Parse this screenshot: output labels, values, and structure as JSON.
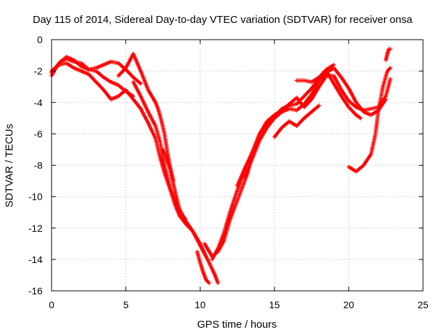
{
  "chart_data": {
    "type": "scatter",
    "title": "Day 115 of 2014, Sidereal Day-to-day VTEC variation (SDTVAR) for receiver onsa",
    "xlabel": "GPS time / hours",
    "ylabel": "SDTVAR / TECUs",
    "xlim": [
      0,
      25
    ],
    "ylim": [
      -16,
      0
    ],
    "xticks": [
      0,
      5,
      10,
      15,
      20,
      25
    ],
    "yticks": [
      0,
      -2,
      -4,
      -6,
      -8,
      -10,
      -12,
      -14,
      -16
    ],
    "grid": true,
    "marker": "+",
    "color": "#ff0000",
    "series": [
      {
        "x": [
          0.0,
          0.3,
          0.6,
          1.0,
          1.5,
          2.0,
          2.5,
          3.0,
          3.5,
          4.0,
          4.5,
          5.0,
          5.5
        ],
        "y": [
          -2.3,
          -1.8,
          -1.4,
          -1.2,
          -1.4,
          -1.5,
          -1.9,
          -2.0,
          -2.4,
          -2.7,
          -2.9,
          -3.3,
          -3.6
        ]
      },
      {
        "x": [
          0.0,
          0.5,
          1.0,
          1.5,
          2.0,
          2.5,
          3.0,
          3.5,
          4.0,
          4.5,
          5.0,
          5.5,
          6.0
        ],
        "y": [
          -2.0,
          -1.6,
          -1.5,
          -1.8,
          -2.0,
          -2.2,
          -2.7,
          -3.2,
          -3.8,
          -3.6,
          -3.2,
          -3.8,
          -4.4
        ]
      },
      {
        "x": [
          0.0,
          0.5,
          1.0,
          1.5,
          2.0,
          2.5,
          3.0,
          3.5,
          4.0,
          4.5,
          5.0,
          5.5,
          6.0
        ],
        "y": [
          -2.1,
          -1.5,
          -1.1,
          -1.3,
          -1.7,
          -1.9,
          -1.8,
          -1.6,
          -1.4,
          -1.5,
          -1.9,
          -2.4,
          -2.8
        ]
      },
      {
        "x": [
          4.5,
          5.0,
          5.5,
          6.0,
          6.5,
          7.0,
          7.2,
          7.4,
          7.6,
          7.8,
          8.0,
          8.2
        ],
        "y": [
          -2.3,
          -1.8,
          -0.9,
          -2.0,
          -3.2,
          -4.0,
          -4.5,
          -5.2,
          -6.0,
          -7.2,
          -8.2,
          -9.0
        ]
      },
      {
        "x": [
          5.5,
          6.0,
          6.5,
          7.0,
          7.3,
          7.6,
          8.0,
          8.3,
          8.6,
          9.0,
          9.5,
          10.0,
          10.3
        ],
        "y": [
          -2.7,
          -3.6,
          -4.6,
          -5.5,
          -6.5,
          -8.0,
          -9.5,
          -10.2,
          -10.8,
          -11.5,
          -12.2,
          -13.0,
          -13.6
        ]
      },
      {
        "x": [
          6.0,
          6.5,
          7.0,
          7.3,
          7.6,
          8.0,
          8.3,
          8.6,
          9.0,
          9.5,
          10.0,
          10.5,
          11.0,
          11.2
        ],
        "y": [
          -4.4,
          -5.3,
          -6.3,
          -7.5,
          -8.5,
          -9.6,
          -10.5,
          -11.2,
          -11.7,
          -12.2,
          -13.1,
          -14.0,
          -15.0,
          -15.5
        ]
      },
      {
        "x": [
          7.5,
          8.0,
          8.2,
          8.4,
          8.6,
          8.8,
          9.0
        ],
        "y": [
          -7.0,
          -8.3,
          -9.2,
          -10.0,
          -10.8,
          -11.2,
          -11.4
        ]
      },
      {
        "x": [
          9.8,
          10.0,
          10.2,
          10.4,
          10.6
        ],
        "y": [
          -13.5,
          -14.2,
          -14.8,
          -15.3,
          -15.5
        ]
      },
      {
        "x": [
          10.3,
          10.8,
          11.2,
          11.6,
          12.0,
          12.4,
          12.8,
          13.2,
          13.5
        ],
        "y": [
          -13.0,
          -13.8,
          -13.5,
          -12.8,
          -11.5,
          -10.5,
          -9.5,
          -8.5,
          -7.2
        ]
      },
      {
        "x": [
          10.8,
          11.2,
          11.6,
          12.0,
          12.5,
          13.0,
          13.5,
          14.0,
          14.5,
          15.0,
          15.5,
          16.0,
          16.5,
          17.0,
          17.5,
          18.0,
          18.5,
          19.0,
          19.5,
          20.0,
          20.5,
          21.0,
          21.5,
          22.0,
          22.5,
          22.8
        ],
        "y": [
          -14.0,
          -13.3,
          -12.3,
          -11.0,
          -9.6,
          -8.3,
          -7.2,
          -6.0,
          -5.2,
          -4.8,
          -4.5,
          -4.1,
          -3.7,
          -4.3,
          -3.8,
          -3.0,
          -2.3,
          -2.3,
          -3.2,
          -3.9,
          -4.3,
          -4.5,
          -4.4,
          -4.3,
          -3.6,
          -2.5
        ]
      },
      {
        "x": [
          12.5,
          13.0,
          13.5,
          14.0,
          14.5,
          15.0,
          15.5,
          16.0,
          16.5,
          17.0,
          17.5,
          18.0,
          18.5,
          19.0,
          19.5,
          20.0,
          20.5,
          20.8
        ],
        "y": [
          -9.3,
          -8.2,
          -7.2,
          -6.0,
          -5.3,
          -4.9,
          -4.4,
          -4.2,
          -4.1,
          -3.6,
          -3.1,
          -2.5,
          -2.0,
          -2.8,
          -3.6,
          -4.3,
          -4.8,
          -5.0
        ]
      },
      {
        "x": [
          13.0,
          13.5,
          14.0,
          14.5,
          15.0,
          15.5,
          16.0,
          16.5,
          17.0,
          17.5,
          18.0,
          18.5,
          19.0,
          19.5,
          20.0,
          20.5,
          21.0,
          21.5,
          22.0,
          22.5
        ],
        "y": [
          -8.8,
          -7.6,
          -6.4,
          -5.6,
          -5.0,
          -4.6,
          -4.4,
          -4.5,
          -4.1,
          -3.5,
          -2.6,
          -2.1,
          -1.8,
          -2.4,
          -3.1,
          -4.0,
          -4.6,
          -4.8,
          -4.5,
          -3.8
        ]
      },
      {
        "x": [
          15.0,
          15.5,
          16.0,
          16.5,
          17.0,
          17.5,
          18.0
        ],
        "y": [
          -6.2,
          -5.6,
          -5.2,
          -5.5,
          -5.0,
          -4.6,
          -4.2
        ]
      },
      {
        "x": [
          16.5,
          17.0,
          17.5,
          18.0,
          18.5,
          19.0
        ],
        "y": [
          -2.6,
          -2.6,
          -2.7,
          -2.4,
          -1.9,
          -1.6
        ]
      },
      {
        "x": [
          20.0,
          20.5,
          21.0,
          21.5,
          21.8,
          22.0,
          22.3,
          22.6,
          22.8
        ],
        "y": [
          -8.1,
          -8.4,
          -8.0,
          -7.3,
          -6.0,
          -4.5,
          -3.0,
          -2.0,
          -1.8
        ]
      },
      {
        "x": [
          22.5,
          22.6,
          22.7,
          22.8
        ],
        "y": [
          -1.3,
          -0.9,
          -0.6,
          -0.6
        ]
      }
    ]
  }
}
